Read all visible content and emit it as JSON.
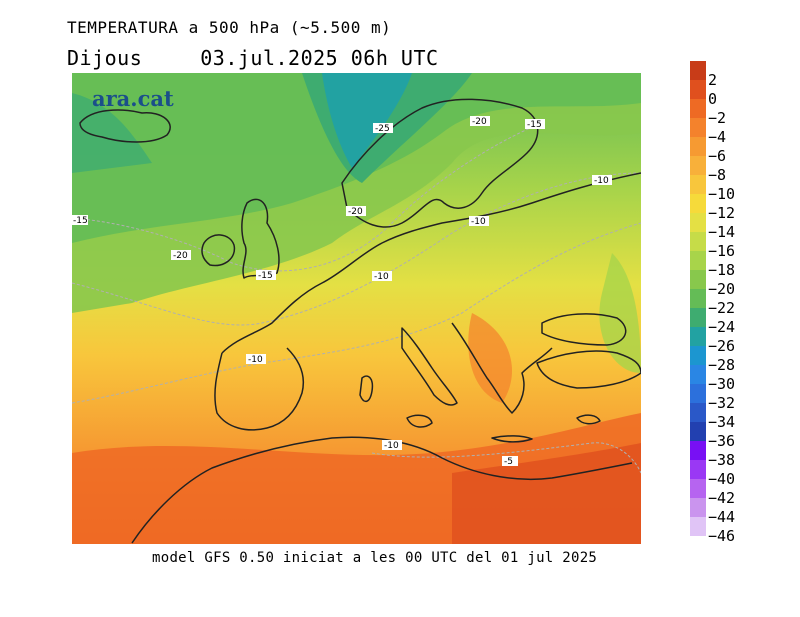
{
  "title": "TEMPERATURA a 500 hPa (~5.500 m)",
  "day": "Dijous",
  "datetime": "03.jul.2025 06h UTC",
  "logo": "ara.cat",
  "footer": "model GFS 0.50 iniciat a les 00 UTC del 01 jul 2025",
  "legend": {
    "levels": [
      "2",
      "0",
      "−2",
      "−4",
      "−6",
      "−8",
      "−10",
      "−12",
      "−14",
      "−16",
      "−18",
      "−20",
      "−22",
      "−24",
      "−26",
      "−28",
      "−30",
      "−32",
      "−34",
      "−36",
      "−38",
      "−40",
      "−42",
      "−44",
      "−46"
    ],
    "colors": [
      "#c83c18",
      "#e0501e",
      "#ee6a24",
      "#f4822c",
      "#f69a32",
      "#f8b03a",
      "#f8c63c",
      "#f6da3a",
      "#e4e044",
      "#c6dc48",
      "#a8d44a",
      "#88c84c",
      "#64bc56",
      "#3eac70",
      "#22a2a2",
      "#1c96d0",
      "#2a86e4",
      "#2c70dc",
      "#2a58c8",
      "#2240b0",
      "#7810f4",
      "#9a38f4",
      "#b664f0",
      "#ca94ee",
      "#e0c4f6"
    ]
  },
  "contour_labels": [
    "-25",
    "-20",
    "-15",
    "-10",
    "-15",
    "-20",
    "-10",
    "-20",
    "-15",
    "-10",
    "-10",
    "-10",
    "-5"
  ],
  "map_colors": {
    "sea_level_bg": "#f6b23a",
    "coast": "#222222"
  }
}
